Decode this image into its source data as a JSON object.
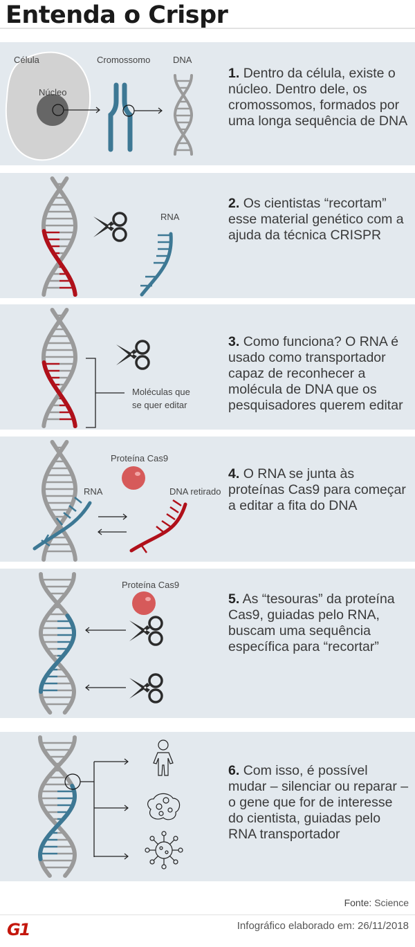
{
  "title": "Entenda o Crispr",
  "colors": {
    "panel_bg": "#e3e9ee",
    "dna_gray": "#9a9a9a",
    "rna_blue": "#3d7894",
    "dna_red": "#b0101a",
    "protein": "#d65a5a",
    "logo_red": "#c4170c"
  },
  "steps": [
    {
      "num": "1.",
      "text": "Dentro da célula, existe o núcleo. Dentro dele, os cromossomos, formados por uma longa sequência de DNA",
      "labels": {
        "cell": "Célula",
        "nucleus": "Núcleo",
        "chromosome": "Cromossomo",
        "dna": "DNA"
      }
    },
    {
      "num": "2.",
      "text": "Os cientistas “recortam” esse material genético com a ajuda da técnica CRISPR",
      "labels": {
        "rna": "RNA"
      }
    },
    {
      "num": "3.",
      "text": "Como funciona? O RNA é usado como transportador capaz de reconhecer a molécula de DNA que os pesquisadores querem editar",
      "labels": {
        "molecules": "Moléculas que se quer editar"
      }
    },
    {
      "num": "4.",
      "text": "O RNA se junta às proteínas Cas9 para começar a editar a fita do DNA",
      "labels": {
        "protein": "Proteína Cas9",
        "rna": "RNA",
        "removed": "DNA retirado"
      }
    },
    {
      "num": "5.",
      "text": "As “tesouras” da proteína Cas9, guiadas pelo RNA, buscam uma sequência específica para “recortar”",
      "labels": {
        "protein": "Proteína Cas9"
      }
    },
    {
      "num": "6.",
      "text": "Com isso, é possível mudar – silenciar ou reparar – o gene que for de interesse do cientista, guiadas pelo RNA transportador",
      "icons": [
        "person-icon",
        "cell-icon",
        "virus-icon"
      ]
    }
  ],
  "footer": {
    "source_label": "Fonte:",
    "source": "Science",
    "credit": "Infográfico elaborado em: 26/11/2018",
    "logo": "G1"
  }
}
